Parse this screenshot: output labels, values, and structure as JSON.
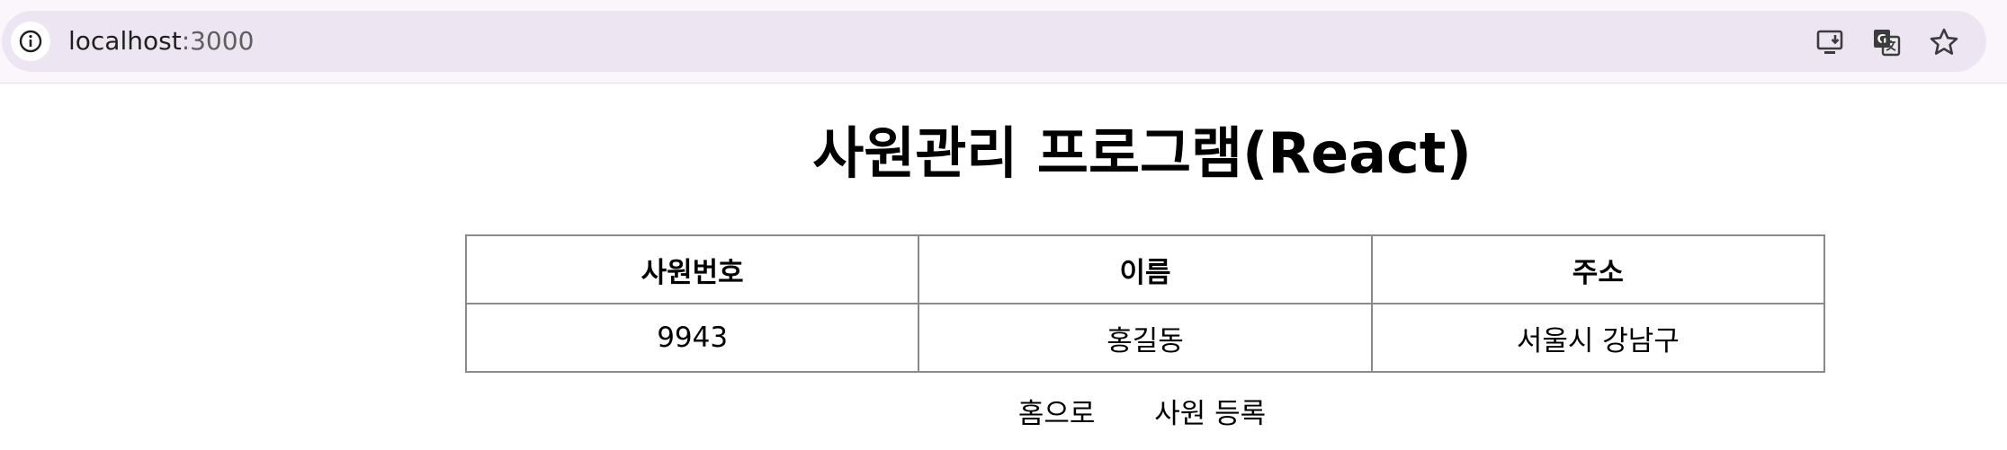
{
  "browser": {
    "url_host": "localhost",
    "url_port": ":3000",
    "icons": [
      "info-icon",
      "install-app-icon",
      "translate-icon",
      "bookmark-star-icon"
    ]
  },
  "page": {
    "title": "사원관리 프로그램(React)",
    "table": {
      "headers": [
        "사원번호",
        "이름",
        "주소"
      ],
      "rows": [
        [
          "9943",
          "홍길동",
          "서울시 강남구"
        ]
      ]
    },
    "links": {
      "home": "홈으로",
      "register": "사원 등록"
    }
  }
}
